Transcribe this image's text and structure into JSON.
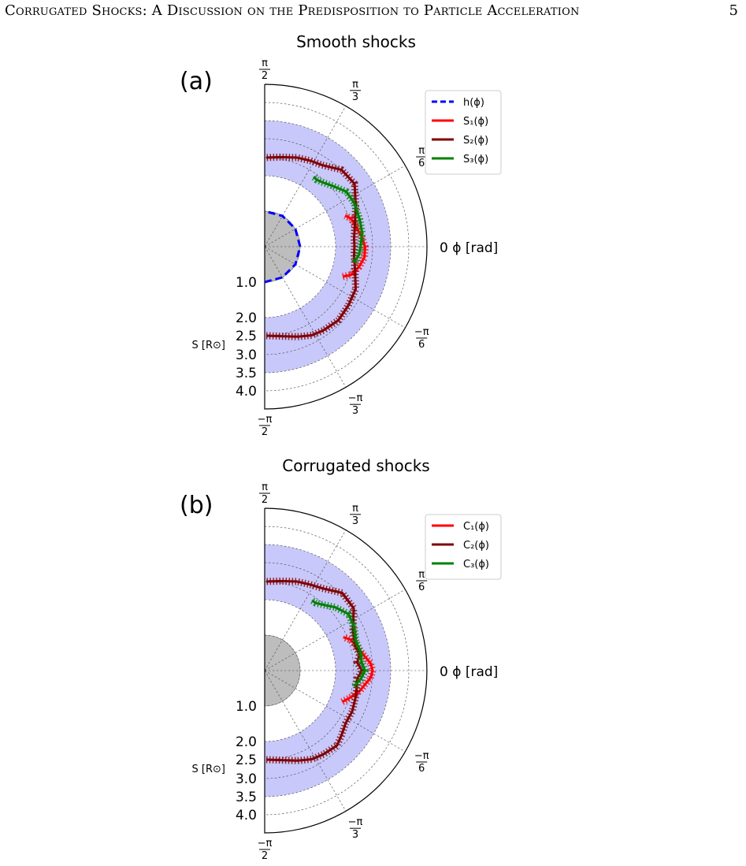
{
  "page": {
    "running_title": "Corrugated Shocks: A Discussion on the Predisposition to Particle Acceleration",
    "page_number": "5"
  },
  "axis_labels": {
    "radial_ticks": [
      "1.0",
      "2.0",
      "2.5",
      "3.0",
      "3.5",
      "4.0"
    ],
    "radial_label": "S [R⊙]",
    "angle_zero": "0",
    "angle_label": "ϕ [rad]",
    "angle_ticks": [
      {
        "angle": 90,
        "num": "π",
        "den": "2"
      },
      {
        "angle": 60,
        "num": "π",
        "den": "3"
      },
      {
        "angle": 30,
        "num": "π",
        "den": "6"
      },
      {
        "angle": -30,
        "num": "−π",
        "den": "6"
      },
      {
        "angle": -60,
        "num": "−π",
        "den": "3"
      },
      {
        "angle": -90,
        "num": "−π",
        "den": "2"
      }
    ]
  },
  "chart_data": [
    {
      "type": "line",
      "projection": "polar-half",
      "panel_label": "(a)",
      "title": "Smooth shocks",
      "theta_unit": "rad",
      "r_unit": "R⊙",
      "r_max": 4.5,
      "grid": true,
      "shaded_band": [
        2.0,
        3.5
      ],
      "sun_radius": 1.0,
      "legend": "top-right",
      "series": [
        {
          "name": "h(ϕ)",
          "color": "#0000ff",
          "style": "dashed",
          "theta_deg": [
            -90,
            -60,
            -30,
            0,
            30,
            60,
            90
          ],
          "r": [
            1.0,
            1.0,
            1.0,
            1.0,
            1.0,
            1.0,
            1.0
          ]
        },
        {
          "name": "S₁(ϕ)",
          "color": "#ff0000",
          "style": "solid-hatched",
          "theta_deg": [
            -21,
            -18,
            -12,
            -6,
            0,
            6,
            12,
            18,
            21
          ],
          "r": [
            2.35,
            2.55,
            2.7,
            2.8,
            2.8,
            2.72,
            2.62,
            2.55,
            2.42
          ]
        },
        {
          "name": "S₂(ϕ)",
          "color": "#800000",
          "style": "solid-hatched",
          "theta_deg": [
            -89,
            -80,
            -70,
            -62,
            -55,
            -45,
            -35,
            -25,
            -15,
            -5,
            0,
            5,
            15,
            25,
            35,
            45,
            55,
            62,
            70,
            80,
            89
          ],
          "r": [
            2.5,
            2.55,
            2.68,
            2.8,
            2.85,
            2.9,
            2.85,
            2.8,
            2.62,
            2.52,
            2.52,
            2.52,
            2.62,
            2.8,
            3.05,
            3.02,
            2.78,
            2.72,
            2.65,
            2.55,
            2.5
          ]
        },
        {
          "name": "S₃(ϕ)",
          "color": "#008000",
          "style": "solid-hatched",
          "theta_deg": [
            -10,
            -5,
            0,
            8,
            16,
            26,
            34,
            42,
            48,
            52,
            55
          ],
          "r": [
            2.55,
            2.65,
            2.68,
            2.75,
            2.76,
            2.78,
            2.75,
            2.55,
            2.43,
            2.38,
            2.4
          ]
        }
      ]
    },
    {
      "type": "line",
      "projection": "polar-half",
      "panel_label": "(b)",
      "title": "Corrugated shocks",
      "theta_unit": "rad",
      "r_unit": "R⊙",
      "r_max": 4.5,
      "grid": true,
      "shaded_band": [
        2.0,
        3.5
      ],
      "sun_radius": 1.0,
      "legend": "top-right",
      "series": [
        {
          "name": "C₁(ϕ)",
          "color": "#ff0000",
          "style": "solid-hatched",
          "theta_deg": [
            -22,
            -18,
            -12,
            -8,
            -4,
            0,
            4,
            8,
            12,
            16,
            20,
            23
          ],
          "r": [
            2.35,
            2.5,
            2.72,
            2.82,
            2.95,
            3.0,
            2.95,
            2.82,
            2.72,
            2.65,
            2.55,
            2.4
          ]
        },
        {
          "name": "C₂(ϕ)",
          "color": "#800000",
          "style": "solid-hatched",
          "theta_deg": [
            -89,
            -80,
            -70,
            -62,
            -55,
            -46,
            -40,
            -33,
            -25,
            -15,
            -5,
            0,
            5,
            10,
            15,
            25,
            35,
            45,
            55,
            62,
            70,
            80,
            89
          ],
          "r": [
            2.5,
            2.55,
            2.68,
            2.8,
            2.85,
            2.9,
            2.8,
            2.7,
            2.7,
            2.65,
            2.6,
            2.72,
            2.6,
            2.7,
            2.62,
            2.72,
            3.02,
            3.05,
            2.8,
            2.72,
            2.65,
            2.55,
            2.5
          ]
        },
        {
          "name": "C₃(ϕ)",
          "color": "#008000",
          "style": "solid-hatched",
          "theta_deg": [
            -10,
            -5,
            0,
            5,
            12,
            18,
            26,
            34,
            42,
            48,
            53,
            56
          ],
          "r": [
            2.55,
            2.7,
            2.8,
            2.72,
            2.72,
            2.68,
            2.78,
            2.82,
            2.65,
            2.48,
            2.38,
            2.38
          ]
        }
      ]
    }
  ]
}
